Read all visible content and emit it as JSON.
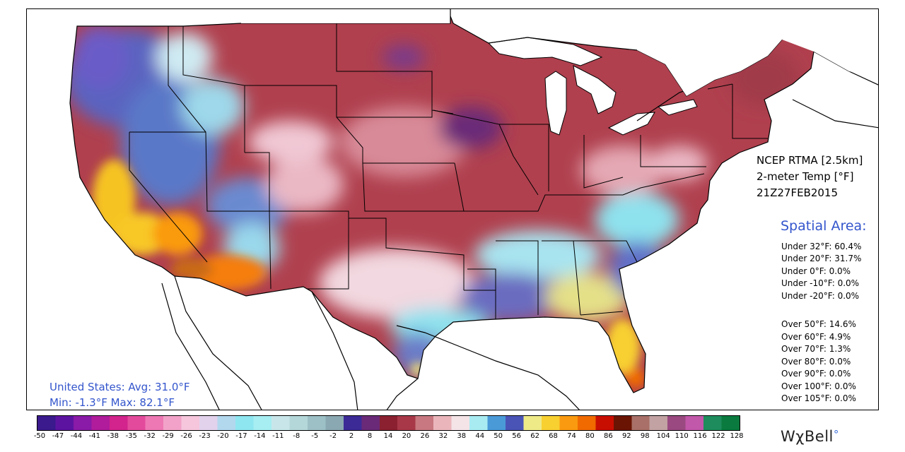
{
  "header": {
    "product": "NCEP RTMA [2.5km]",
    "variable": "2-meter Temp [°F]",
    "valid_time": "21Z27FEB2015"
  },
  "spatial_area": {
    "title": "Spatial Area:",
    "under": [
      "Under 32°F: 60.4%",
      "Under 20°F: 31.7%",
      "Under 0°F: 0.0%",
      "Under -10°F: 0.0%",
      "Under -20°F: 0.0%"
    ],
    "over": [
      "Over 50°F: 14.6%",
      "Over 60°F: 4.9%",
      "Over 70°F: 1.3%",
      "Over 80°F: 0.0%",
      "Over 90°F: 0.0%",
      "Over 100°F: 0.0%",
      "Over 105°F: 0.0%"
    ]
  },
  "summary": {
    "line1": "United States: Avg:  31.0°F",
    "line2": "Min:  -1.3°F Max:  82.1°F"
  },
  "colorbar": {
    "ticks": [
      "-50",
      "-47",
      "-44",
      "-41",
      "-38",
      "-35",
      "-32",
      "-29",
      "-26",
      "-23",
      "-20",
      "-17",
      "-14",
      "-11",
      "-8",
      "-5",
      "-2",
      "2",
      "8",
      "14",
      "20",
      "26",
      "32",
      "38",
      "44",
      "50",
      "56",
      "62",
      "68",
      "74",
      "80",
      "86",
      "92",
      "98",
      "104",
      "110",
      "116",
      "122",
      "128"
    ],
    "colors": [
      "#3a1a8c",
      "#5c14a0",
      "#8a1aa8",
      "#b01c9c",
      "#d2248c",
      "#e44a9c",
      "#ee78b4",
      "#f2a2c8",
      "#f6c6dc",
      "#e2d2ec",
      "#b2d8ee",
      "#8ee6f0",
      "#a6eef2",
      "#c8e6ea",
      "#b4d8da",
      "#9cc0c6",
      "#8aa8b2",
      "#3c2a96",
      "#6a2a78",
      "#8a2030",
      "#a83848",
      "#c87880",
      "#eab6bc",
      "#f4e4e8",
      "#a8ecf2",
      "#4a9ad8",
      "#4a54b6",
      "#eeea88",
      "#f8d030",
      "#fa9a10",
      "#f06a00",
      "#c80e00",
      "#6a1404",
      "#a87068",
      "#c2a2a2",
      "#9a4a80",
      "#c258aa",
      "#1e8c5c",
      "#0a7a3e"
    ]
  },
  "brand": {
    "name": "WχBell",
    "dot": "°"
  }
}
